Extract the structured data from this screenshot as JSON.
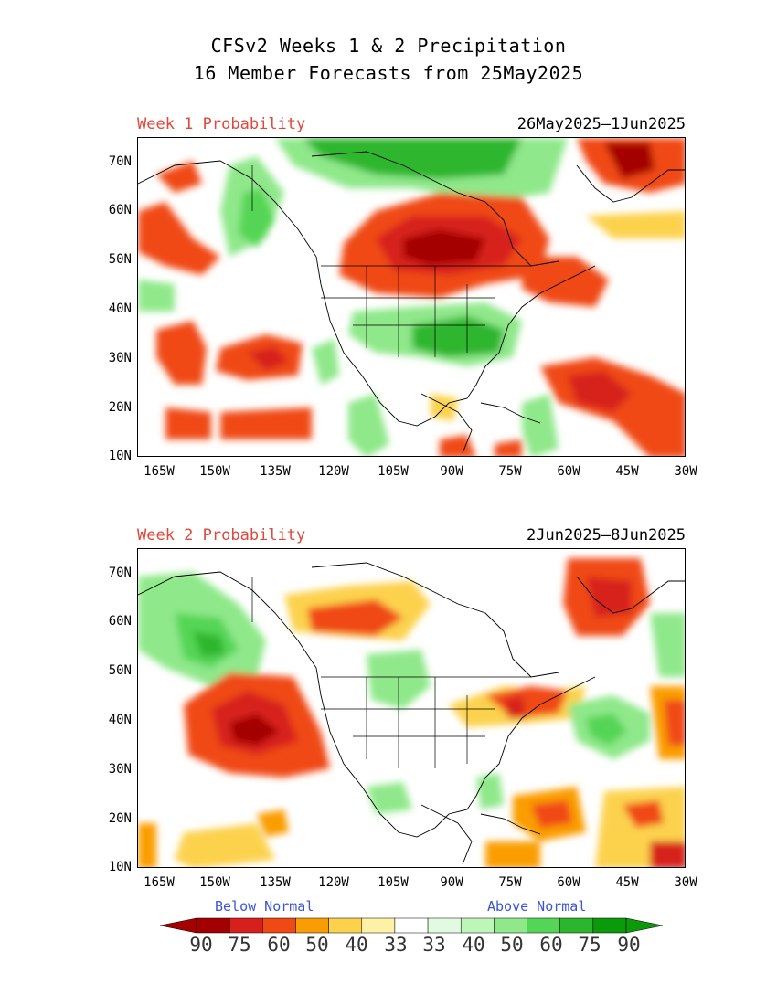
{
  "title_line1": "CFSv2 Weeks 1 & 2 Precipitation",
  "title_line2": "16 Member Forecasts from 25May2025",
  "panels": [
    {
      "label": "Week 1 Probability",
      "dates": "26May2025—1Jun2025"
    },
    {
      "label": "Week 2 Probability",
      "dates": "2Jun2025—8Jun2025"
    }
  ],
  "lat_ticks": [
    "70N",
    "60N",
    "50N",
    "40N",
    "30N",
    "20N",
    "10N"
  ],
  "lon_ticks": [
    "165W",
    "150W",
    "135W",
    "120W",
    "105W",
    "90W",
    "75W",
    "60W",
    "45W",
    "30W"
  ],
  "legend": {
    "below_label": "Below Normal",
    "above_label": "Above Normal",
    "values": [
      "90",
      "75",
      "60",
      "50",
      "40",
      "33",
      "33",
      "40",
      "50",
      "60",
      "75",
      "90"
    ],
    "colors": {
      "below": [
        "#a50000",
        "#d7201c",
        "#f04a14",
        "#fa9d05",
        "#fcd24d",
        "#fdf1a6"
      ],
      "neutral": "#ffffff",
      "above": [
        "#e0fbe0",
        "#bef5b9",
        "#8fe88a",
        "#55d555",
        "#2db62d",
        "#0a9a0a"
      ]
    }
  }
}
